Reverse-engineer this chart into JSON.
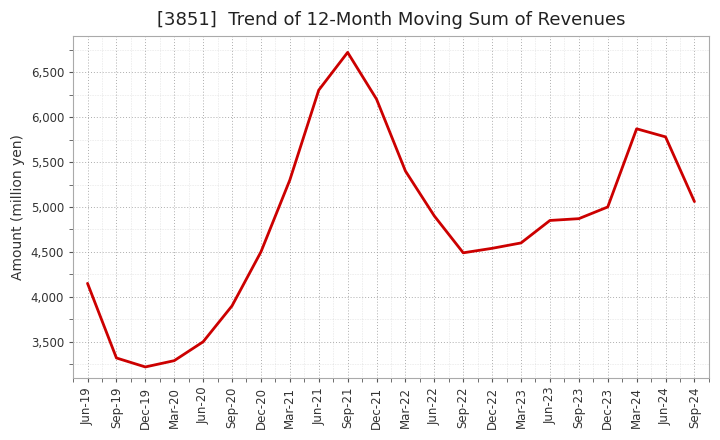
{
  "title": "[3851]  Trend of 12-Month Moving Sum of Revenues",
  "ylabel": "Amount (million yen)",
  "line_color": "#cc0000",
  "line_width": 2.0,
  "background_color": "#ffffff",
  "plot_bg_color": "#ffffff",
  "grid_color": "#999999",
  "xlabels": [
    "Jun-19",
    "Sep-19",
    "Dec-19",
    "Mar-20",
    "Jun-20",
    "Sep-20",
    "Dec-20",
    "Mar-21",
    "Jun-21",
    "Sep-21",
    "Dec-21",
    "Mar-22",
    "Jun-22",
    "Sep-22",
    "Dec-22",
    "Mar-23",
    "Jun-23",
    "Sep-23",
    "Dec-23",
    "Mar-24",
    "Jun-24",
    "Sep-24"
  ],
  "values": [
    4150,
    3320,
    3220,
    3290,
    3500,
    3900,
    4500,
    5300,
    6300,
    6720,
    6200,
    5400,
    4900,
    4490,
    4540,
    4600,
    4850,
    4870,
    5000,
    5870,
    5780,
    5060
  ],
  "ylim": [
    3100,
    6900
  ],
  "yticks": [
    3500,
    4000,
    4500,
    5000,
    5500,
    6000,
    6500
  ],
  "title_fontsize": 13,
  "axis_fontsize": 10,
  "tick_fontsize": 8.5
}
